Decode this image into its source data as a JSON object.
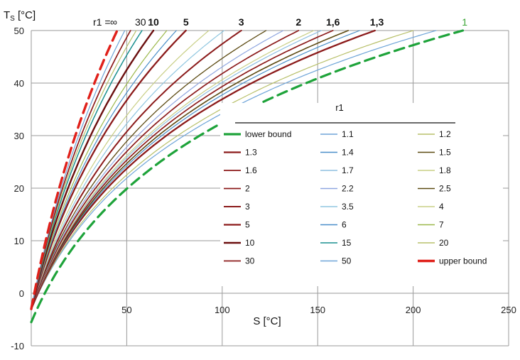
{
  "chart_data": {
    "type": "line",
    "title": "",
    "xlabel": "S [°C]",
    "ylabel_main": "T",
    "ylabel_sub": "S",
    "ylabel_unit": " [°C]",
    "xlim": [
      0,
      250
    ],
    "ylim": [
      -10,
      50
    ],
    "xticks": [
      50,
      100,
      150,
      200,
      250
    ],
    "yticks": [
      -10,
      0,
      10,
      20,
      30,
      40,
      50
    ],
    "grid": true,
    "legend": {
      "title": "r1",
      "placement": "center-right inside plot"
    },
    "top_labels": {
      "prefix": "r1 =",
      "items": [
        {
          "text": "∞",
          "at_x": 45,
          "bold": false
        },
        {
          "text": "30",
          "at_x": 52,
          "bold": false
        },
        {
          "text": "10",
          "at_x": 64,
          "bold": true
        },
        {
          "text": "5",
          "at_x": 81,
          "bold": true
        },
        {
          "text": "3",
          "at_x": 110,
          "bold": true
        },
        {
          "text": "2",
          "at_x": 140,
          "bold": true
        },
        {
          "text": "1,6",
          "at_x": 158,
          "bold": true
        },
        {
          "text": "1,3",
          "at_x": 181,
          "bold": true
        },
        {
          "text": "1",
          "at_x": 227,
          "bold": false,
          "color": "#3aa635"
        }
      ]
    },
    "series": [
      {
        "name": "lower bound",
        "end_x": 226,
        "color": "#1ea33a",
        "dashed": true,
        "width": 3.2,
        "y0": -5.5
      },
      {
        "name": "1.1",
        "end_x": 212,
        "color": "#6ea4d8",
        "dashed": false,
        "width": 1.2
      },
      {
        "name": "1.2",
        "end_x": 200,
        "color": "#b8c06a",
        "dashed": false,
        "width": 1.2
      },
      {
        "name": "1.3",
        "end_x": 180,
        "color": "#8b1a1a",
        "dashed": false,
        "width": 2.3
      },
      {
        "name": "1.4",
        "end_x": 172,
        "color": "#4a8fc9",
        "dashed": false,
        "width": 1.2
      },
      {
        "name": "1.5",
        "end_x": 166,
        "color": "#5c4a12",
        "dashed": false,
        "width": 1.6
      },
      {
        "name": "1.6",
        "end_x": 158,
        "color": "#8b1a1a",
        "dashed": false,
        "width": 1.7
      },
      {
        "name": "1.7",
        "end_x": 152,
        "color": "#8fbfe0",
        "dashed": false,
        "width": 1.2
      },
      {
        "name": "1.8",
        "end_x": 148,
        "color": "#c9cf86",
        "dashed": false,
        "width": 1.2
      },
      {
        "name": "2",
        "end_x": 140,
        "color": "#8b1a1a",
        "dashed": false,
        "width": 1.7
      },
      {
        "name": "2.2",
        "end_x": 132,
        "color": "#8fa6e0",
        "dashed": false,
        "width": 1.2
      },
      {
        "name": "2.5",
        "end_x": 123,
        "color": "#5c4a12",
        "dashed": false,
        "width": 1.3
      },
      {
        "name": "3",
        "end_x": 110,
        "color": "#8b1a1a",
        "dashed": false,
        "width": 2.0
      },
      {
        "name": "3.5",
        "end_x": 101,
        "color": "#8fc6e0",
        "dashed": false,
        "width": 1.2
      },
      {
        "name": "4",
        "end_x": 93,
        "color": "#c9cf86",
        "dashed": false,
        "width": 1.2
      },
      {
        "name": "5",
        "end_x": 81,
        "color": "#8b1a1a",
        "dashed": false,
        "width": 2.3
      },
      {
        "name": "6",
        "end_x": 76,
        "color": "#4a8fc9",
        "dashed": false,
        "width": 1.2
      },
      {
        "name": "7",
        "end_x": 71,
        "color": "#9cb84a",
        "dashed": false,
        "width": 1.2
      },
      {
        "name": "10",
        "end_x": 64,
        "color": "#6b0f0f",
        "dashed": false,
        "width": 2.4
      },
      {
        "name": "15",
        "end_x": 58,
        "color": "#1a8f8f",
        "dashed": false,
        "width": 1.5
      },
      {
        "name": "20",
        "end_x": 55,
        "color": "#b8c06a",
        "dashed": false,
        "width": 1.2
      },
      {
        "name": "30",
        "end_x": 52,
        "color": "#8b1a1a",
        "dashed": false,
        "width": 1.7
      },
      {
        "name": "50",
        "end_x": 49,
        "color": "#6ea4d8",
        "dashed": false,
        "width": 1.2
      },
      {
        "name": "upper bound",
        "end_x": 45,
        "color": "#e0201a",
        "dashed": true,
        "width": 3.4,
        "y0": -3
      }
    ],
    "legend_order": [
      "lower bound",
      "1.1",
      "1.2",
      "1.3",
      "1.4",
      "1.5",
      "1.6",
      "1.7",
      "1.8",
      "2",
      "2.2",
      "2.5",
      "3",
      "3.5",
      "4",
      "5",
      "6",
      "7",
      "10",
      "15",
      "20",
      "30",
      "50",
      "upper bound"
    ]
  }
}
